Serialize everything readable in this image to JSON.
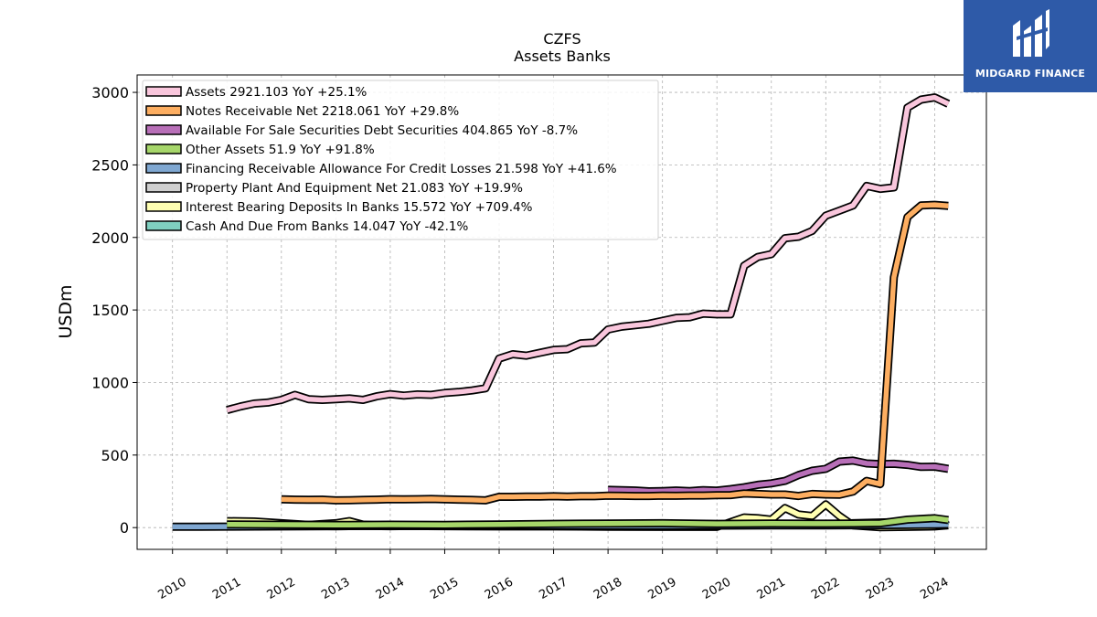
{
  "brand": {
    "logo_text": "MIDGARD FINANCE",
    "logo_color": "#2e5aa8"
  },
  "chart_data": {
    "type": "line",
    "title": "CZFS",
    "subtitle": "Assets Banks",
    "ylabel": "USDm",
    "xlabel": "",
    "xlim": [
      2009.35,
      2024.95
    ],
    "ylim": [
      -150,
      3120
    ],
    "yticks": [
      0,
      500,
      1000,
      1500,
      2000,
      2500,
      3000
    ],
    "xticks": [
      2010,
      2011,
      2012,
      2013,
      2014,
      2015,
      2016,
      2017,
      2018,
      2019,
      2020,
      2021,
      2022,
      2023,
      2024
    ],
    "grid": true,
    "legend_position": "top-left",
    "series": [
      {
        "name": "Assets",
        "legend": "Assets  2921.103 YoY +25.1%",
        "color": "#f9c6dc",
        "x": [
          2011.0,
          2011.25,
          2011.5,
          2011.75,
          2012.0,
          2012.25,
          2012.5,
          2012.75,
          2013.0,
          2013.25,
          2013.5,
          2013.75,
          2014.0,
          2014.25,
          2014.5,
          2014.75,
          2015.0,
          2015.25,
          2015.5,
          2015.75,
          2016.0,
          2016.25,
          2016.5,
          2016.75,
          2017.0,
          2017.25,
          2017.5,
          2017.75,
          2018.0,
          2018.25,
          2018.5,
          2018.75,
          2019.0,
          2019.25,
          2019.5,
          2019.75,
          2020.0,
          2020.25,
          2020.5,
          2020.75,
          2021.0,
          2021.25,
          2021.5,
          2021.75,
          2022.0,
          2022.25,
          2022.5,
          2022.75,
          2023.0,
          2023.25,
          2023.5,
          2023.75,
          2024.0,
          2024.25
        ],
        "values": [
          810,
          835,
          855,
          862,
          880,
          915,
          885,
          880,
          885,
          890,
          880,
          905,
          920,
          910,
          918,
          915,
          928,
          935,
          945,
          960,
          1165,
          1195,
          1185,
          1205,
          1225,
          1230,
          1270,
          1275,
          1365,
          1385,
          1395,
          1405,
          1425,
          1445,
          1450,
          1475,
          1470,
          1470,
          1805,
          1865,
          1885,
          1995,
          2005,
          2045,
          2150,
          2185,
          2220,
          2355,
          2335,
          2345,
          2895,
          2950,
          2965,
          2921
        ]
      },
      {
        "name": "Notes Receivable Net",
        "legend": "Notes Receivable Net  2218.061 YoY +29.8%",
        "color": "#fdae61",
        "x": [
          2012.0,
          2012.25,
          2012.5,
          2012.75,
          2013.0,
          2013.25,
          2013.5,
          2013.75,
          2014.0,
          2014.25,
          2014.5,
          2014.75,
          2015.0,
          2015.25,
          2015.5,
          2015.75,
          2016.0,
          2016.25,
          2016.5,
          2016.75,
          2017.0,
          2017.25,
          2017.5,
          2017.75,
          2018.0,
          2018.25,
          2018.5,
          2018.75,
          2019.0,
          2019.25,
          2019.5,
          2019.75,
          2020.0,
          2020.25,
          2020.5,
          2020.75,
          2021.0,
          2021.25,
          2021.5,
          2021.75,
          2022.0,
          2022.25,
          2022.5,
          2022.75,
          2023.0,
          2023.25,
          2023.5,
          2023.75,
          2024.0,
          2024.25
        ],
        "values": [
          195,
          193,
          192,
          193,
          188,
          189,
          191,
          193,
          196,
          195,
          196,
          197,
          195,
          193,
          191,
          188,
          212,
          212,
          214,
          214,
          216,
          214,
          216,
          216,
          220,
          219,
          218,
          218,
          220,
          219,
          221,
          221,
          223,
          224,
          235,
          232,
          228,
          228,
          218,
          232,
          228,
          226,
          248,
          322,
          300,
          1725,
          2140,
          2220,
          2225,
          2218
        ]
      },
      {
        "name": "Available For Sale Securities Debt Securities",
        "legend": "Available For Sale Securities Debt Securities  404.865 YoY -8.7%",
        "color": "#b86fb8",
        "x": [
          2018.0,
          2018.25,
          2018.5,
          2018.75,
          2019.0,
          2019.25,
          2019.5,
          2019.75,
          2020.0,
          2020.25,
          2020.5,
          2020.75,
          2021.0,
          2021.25,
          2021.5,
          2021.75,
          2022.0,
          2022.25,
          2022.5,
          2022.75,
          2023.0,
          2023.25,
          2023.5,
          2023.75,
          2024.0,
          2024.25
        ],
        "values": [
          260,
          258,
          256,
          250,
          252,
          256,
          252,
          258,
          255,
          265,
          278,
          295,
          305,
          322,
          362,
          392,
          405,
          455,
          462,
          442,
          437,
          440,
          432,
          418,
          420,
          405
        ]
      },
      {
        "name": "Other Assets",
        "legend": "Other Assets  51.9 YoY +91.8%",
        "color": "#a6d66a",
        "x": [
          2011.0,
          2012.0,
          2013.0,
          2014.0,
          2015.0,
          2016.0,
          2017.0,
          2018.0,
          2019.0,
          2020.0,
          2021.0,
          2022.0,
          2022.5,
          2023.0,
          2023.5,
          2024.0,
          2024.25
        ],
        "values": [
          22,
          20,
          18,
          20,
          19,
          22,
          26,
          28,
          30,
          26,
          28,
          27,
          28,
          30,
          55,
          65,
          52
        ]
      },
      {
        "name": "Financing Receivable Allowance For Credit Losses",
        "legend": "Financing Receivable Allowance For Credit Losses  21.598 YoY +41.6%",
        "color": "#7fa7d1",
        "x": [
          2010.0,
          2010.5,
          2011.0,
          2012.0,
          2013.0,
          2014.0,
          2015.0,
          2016.0,
          2017.0,
          2018.0,
          2019.0,
          2020.0,
          2021.0,
          2022.0,
          2023.0,
          2024.0,
          2024.25
        ],
        "values": [
          6,
          6,
          7,
          8,
          10,
          11,
          12,
          12,
          12,
          12,
          13,
          14,
          15,
          16,
          17,
          20,
          22
        ]
      },
      {
        "name": "Property Plant And Equipment Net",
        "legend": "Property Plant And Equipment Net  21.083 YoY +19.9%",
        "color": "#cfcfcf",
        "x": [
          2011.0,
          2012.0,
          2013.0,
          2014.0,
          2015.0,
          2016.0,
          2017.0,
          2018.0,
          2019.0,
          2020.0,
          2021.0,
          2022.0,
          2023.0,
          2024.0,
          2024.25
        ],
        "values": [
          14,
          14,
          15,
          15,
          15,
          16,
          16,
          17,
          17,
          18,
          18,
          18,
          18,
          20,
          21
        ]
      },
      {
        "name": "Interest Bearing Deposits In Banks",
        "legend": "Interest Bearing Deposits In Banks  15.572 YoY +709.4%",
        "color": "#ffffb2",
        "x": [
          2011.0,
          2011.5,
          2012.0,
          2012.5,
          2013.0,
          2013.25,
          2013.5,
          2014.0,
          2015.0,
          2016.0,
          2017.0,
          2018.0,
          2019.0,
          2020.0,
          2020.5,
          2020.75,
          2021.0,
          2021.25,
          2021.5,
          2021.75,
          2022.0,
          2022.25,
          2022.5,
          2023.0,
          2023.5,
          2024.0,
          2024.25
        ],
        "values": [
          45,
          42,
          30,
          18,
          30,
          45,
          20,
          12,
          10,
          8,
          8,
          6,
          5,
          5,
          70,
          65,
          55,
          135,
          90,
          80,
          160,
          80,
          15,
          3,
          5,
          8,
          16
        ]
      },
      {
        "name": "Cash And Due From Banks",
        "legend": "Cash And Due From Banks  14.047 YoY -42.1%",
        "color": "#7fd0c0",
        "x": [
          2011.0,
          2011.5,
          2012.0,
          2012.5,
          2013.0,
          2013.5,
          2014.0,
          2014.5,
          2015.0,
          2015.5,
          2016.0,
          2016.5,
          2017.0,
          2017.5,
          2018.0,
          2018.5,
          2019.0,
          2019.5,
          2020.0,
          2020.5,
          2021.0,
          2021.5,
          2022.0,
          2022.5,
          2023.0,
          2023.5,
          2024.0,
          2024.25
        ],
        "values": [
          15,
          16,
          14,
          12,
          10,
          12,
          10,
          12,
          15,
          12,
          16,
          18,
          15,
          20,
          12,
          16,
          18,
          20,
          22,
          25,
          18,
          20,
          18,
          30,
          35,
          40,
          45,
          14
        ]
      }
    ]
  }
}
